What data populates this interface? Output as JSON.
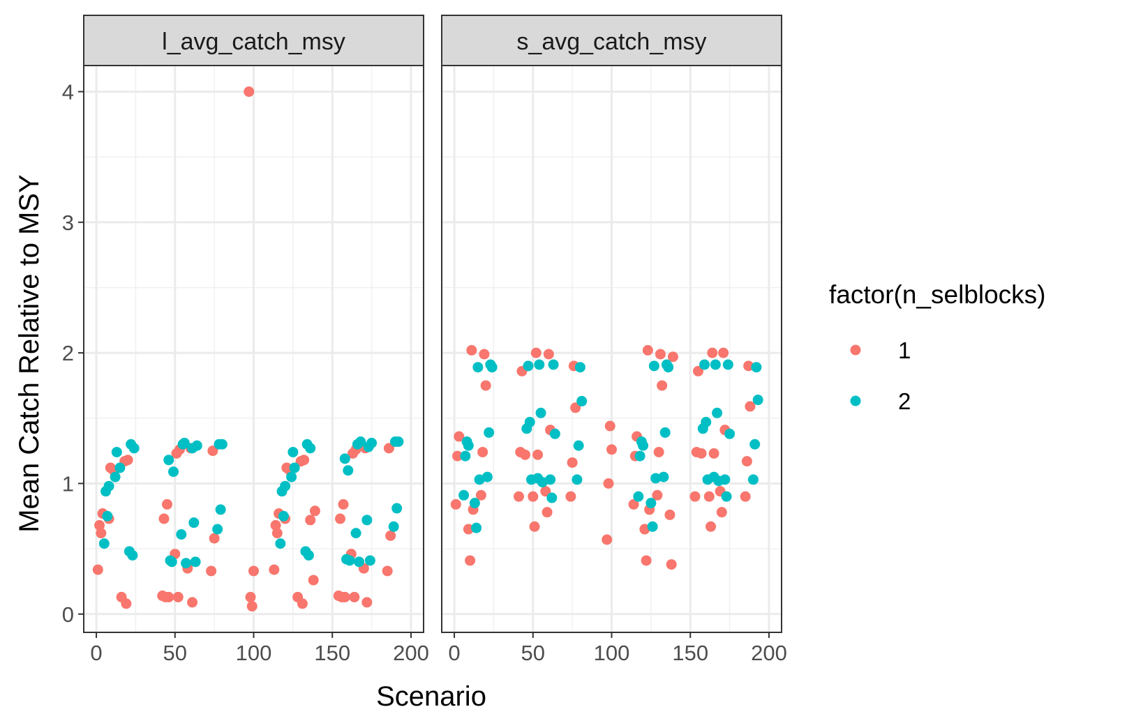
{
  "chart_data": {
    "type": "scatter",
    "xlabel": "Scenario",
    "ylabel": "Mean Catch Relative to MSY",
    "xlim": [
      -8,
      208
    ],
    "ylim": [
      -0.14,
      4.2
    ],
    "x_ticks": [
      0,
      50,
      100,
      150,
      200
    ],
    "x_tick_labels": [
      "0",
      "50",
      "100",
      "150",
      "200"
    ],
    "y_ticks": [
      0,
      1,
      2,
      3,
      4
    ],
    "y_tick_labels": [
      "0",
      "1",
      "2",
      "3",
      "4"
    ],
    "grid": true,
    "legend": {
      "title": "factor(n_selblocks)",
      "placement": "right",
      "entries": [
        {
          "label": "1",
          "color": "#F8766D"
        },
        {
          "label": "2",
          "color": "#00BFC4"
        }
      ]
    },
    "panels": [
      {
        "strip": "l_avg_catch_msy",
        "series": [
          {
            "name": "1",
            "color": "#F8766D",
            "points": [
              [
                1,
                0.34
              ],
              [
                2,
                0.68
              ],
              [
                3,
                0.62
              ],
              [
                4,
                0.77
              ],
              [
                8,
                0.73
              ],
              [
                9,
                1.12
              ],
              [
                11,
                1.1
              ],
              [
                16,
                0.13
              ],
              [
                18,
                1.17
              ],
              [
                19,
                0.08
              ],
              [
                20,
                1.18
              ],
              [
                42,
                0.14
              ],
              [
                43,
                0.73
              ],
              [
                44,
                0.13
              ],
              [
                45,
                0.84
              ],
              [
                46,
                0.13
              ],
              [
                50,
                0.46
              ],
              [
                51,
                1.23
              ],
              [
                52,
                0.13
              ],
              [
                53,
                1.26
              ],
              [
                58,
                0.35
              ],
              [
                60,
                1.27
              ],
              [
                61,
                0.09
              ],
              [
                73,
                0.33
              ],
              [
                74,
                1.25
              ],
              [
                75,
                0.58
              ],
              [
                97,
                4.0
              ],
              [
                98,
                0.13
              ],
              [
                99,
                0.06
              ],
              [
                100,
                0.33
              ],
              [
                113,
                0.34
              ],
              [
                114,
                0.68
              ],
              [
                115,
                0.62
              ],
              [
                116,
                0.77
              ],
              [
                120,
                0.73
              ],
              [
                121,
                1.12
              ],
              [
                123,
                1.1
              ],
              [
                128,
                0.13
              ],
              [
                130,
                1.17
              ],
              [
                131,
                0.08
              ],
              [
                132,
                1.18
              ],
              [
                136,
                0.72
              ],
              [
                138,
                0.26
              ],
              [
                139,
                0.79
              ],
              [
                154,
                0.14
              ],
              [
                155,
                0.73
              ],
              [
                156,
                0.13
              ],
              [
                157,
                0.84
              ],
              [
                158,
                0.13
              ],
              [
                162,
                0.46
              ],
              [
                163,
                1.23
              ],
              [
                164,
                0.13
              ],
              [
                165,
                1.26
              ],
              [
                170,
                0.35
              ],
              [
                171,
                1.27
              ],
              [
                172,
                0.09
              ],
              [
                185,
                0.33
              ],
              [
                186,
                1.27
              ],
              [
                187,
                0.6
              ]
            ]
          },
          {
            "name": "2",
            "color": "#00BFC4",
            "points": [
              [
                5,
                0.54
              ],
              [
                6,
                0.94
              ],
              [
                7,
                0.75
              ],
              [
                8,
                0.98
              ],
              [
                12,
                1.05
              ],
              [
                13,
                1.24
              ],
              [
                15,
                1.12
              ],
              [
                21,
                0.48
              ],
              [
                22,
                1.3
              ],
              [
                23,
                0.45
              ],
              [
                24,
                1.27
              ],
              [
                46,
                1.18
              ],
              [
                47,
                0.41
              ],
              [
                48,
                0.4
              ],
              [
                49,
                1.09
              ],
              [
                54,
                0.61
              ],
              [
                55,
                1.3
              ],
              [
                57,
                0.39
              ],
              [
                56,
                1.31
              ],
              [
                61,
                1.27
              ],
              [
                62,
                0.7
              ],
              [
                63,
                0.4
              ],
              [
                64,
                1.29
              ],
              [
                77,
                0.65
              ],
              [
                78,
                1.3
              ],
              [
                79,
                0.8
              ],
              [
                80,
                1.3
              ],
              [
                117,
                0.54
              ],
              [
                118,
                0.94
              ],
              [
                119,
                0.75
              ],
              [
                120,
                0.98
              ],
              [
                124,
                1.05
              ],
              [
                125,
                1.24
              ],
              [
                126,
                1.12
              ],
              [
                133,
                0.48
              ],
              [
                134,
                1.3
              ],
              [
                135,
                0.45
              ],
              [
                136,
                1.27
              ],
              [
                158,
                1.19
              ],
              [
                159,
                0.42
              ],
              [
                160,
                1.1
              ],
              [
                161,
                0.41
              ],
              [
                165,
                0.62
              ],
              [
                166,
                1.3
              ],
              [
                167,
                0.4
              ],
              [
                168,
                1.32
              ],
              [
                172,
                0.72
              ],
              [
                173,
                1.28
              ],
              [
                174,
                0.41
              ],
              [
                175,
                1.31
              ],
              [
                189,
                0.67
              ],
              [
                190,
                1.32
              ],
              [
                191,
                0.81
              ],
              [
                192,
                1.32
              ]
            ]
          }
        ]
      },
      {
        "strip": "s_avg_catch_msy",
        "series": [
          {
            "name": "1",
            "color": "#F8766D",
            "points": [
              [
                1,
                0.84
              ],
              [
                2,
                1.21
              ],
              [
                3,
                1.36
              ],
              [
                9,
                0.65
              ],
              [
                10,
                0.41
              ],
              [
                11,
                2.02
              ],
              [
                12,
                0.8
              ],
              [
                17,
                0.91
              ],
              [
                18,
                1.24
              ],
              [
                19,
                1.99
              ],
              [
                20,
                1.75
              ],
              [
                41,
                0.9
              ],
              [
                42,
                1.24
              ],
              [
                43,
                1.86
              ],
              [
                45,
                1.22
              ],
              [
                50,
                0.9
              ],
              [
                51,
                0.67
              ],
              [
                52,
                2.0
              ],
              [
                53,
                1.22
              ],
              [
                58,
                0.94
              ],
              [
                59,
                0.78
              ],
              [
                60,
                1.99
              ],
              [
                61,
                1.41
              ],
              [
                74,
                0.9
              ],
              [
                75,
                1.16
              ],
              [
                76,
                1.9
              ],
              [
                77,
                1.58
              ],
              [
                97,
                0.57
              ],
              [
                98,
                1.0
              ],
              [
                99,
                1.44
              ],
              [
                100,
                1.26
              ],
              [
                114,
                0.84
              ],
              [
                115,
                1.21
              ],
              [
                116,
                1.36
              ],
              [
                121,
                0.65
              ],
              [
                122,
                0.41
              ],
              [
                123,
                2.02
              ],
              [
                124,
                0.8
              ],
              [
                129,
                0.91
              ],
              [
                130,
                1.24
              ],
              [
                131,
                1.99
              ],
              [
                132,
                1.75
              ],
              [
                137,
                0.76
              ],
              [
                138,
                0.38
              ],
              [
                139,
                1.97
              ],
              [
                153,
                0.9
              ],
              [
                154,
                1.24
              ],
              [
                155,
                1.86
              ],
              [
                157,
                1.23
              ],
              [
                162,
                0.9
              ],
              [
                163,
                0.67
              ],
              [
                164,
                2.0
              ],
              [
                165,
                1.23
              ],
              [
                169,
                0.94
              ],
              [
                170,
                0.78
              ],
              [
                171,
                2.0
              ],
              [
                172,
                1.41
              ],
              [
                185,
                0.9
              ],
              [
                186,
                1.17
              ],
              [
                187,
                1.9
              ],
              [
                188,
                1.59
              ]
            ]
          },
          {
            "name": "2",
            "color": "#00BFC4",
            "points": [
              [
                6,
                0.91
              ],
              [
                7,
                1.21
              ],
              [
                8,
                1.32
              ],
              [
                9,
                1.29
              ],
              [
                13,
                0.85
              ],
              [
                14,
                0.66
              ],
              [
                15,
                1.89
              ],
              [
                16,
                1.03
              ],
              [
                21,
                1.05
              ],
              [
                22,
                1.39
              ],
              [
                23,
                1.91
              ],
              [
                24,
                1.89
              ],
              [
                46,
                1.42
              ],
              [
                47,
                1.9
              ],
              [
                48,
                1.47
              ],
              [
                49,
                1.03
              ],
              [
                53,
                1.04
              ],
              [
                54,
                1.91
              ],
              [
                55,
                1.54
              ],
              [
                56,
                1.01
              ],
              [
                61,
                1.03
              ],
              [
                62,
                0.89
              ],
              [
                63,
                1.91
              ],
              [
                64,
                1.38
              ],
              [
                78,
                1.03
              ],
              [
                79,
                1.29
              ],
              [
                80,
                1.89
              ],
              [
                81,
                1.63
              ],
              [
                117,
                0.9
              ],
              [
                118,
                1.21
              ],
              [
                119,
                1.32
              ],
              [
                120,
                1.29
              ],
              [
                125,
                0.85
              ],
              [
                126,
                0.67
              ],
              [
                127,
                1.9
              ],
              [
                128,
                1.04
              ],
              [
                133,
                1.05
              ],
              [
                134,
                1.39
              ],
              [
                135,
                1.91
              ],
              [
                136,
                1.89
              ],
              [
                158,
                1.42
              ],
              [
                159,
                1.91
              ],
              [
                160,
                1.47
              ],
              [
                161,
                1.03
              ],
              [
                165,
                1.05
              ],
              [
                166,
                1.91
              ],
              [
                167,
                1.54
              ],
              [
                168,
                1.02
              ],
              [
                172,
                1.03
              ],
              [
                173,
                0.9
              ],
              [
                174,
                1.91
              ],
              [
                175,
                1.38
              ],
              [
                190,
                1.03
              ],
              [
                191,
                1.3
              ],
              [
                192,
                1.89
              ],
              [
                193,
                1.64
              ]
            ]
          }
        ]
      }
    ]
  }
}
